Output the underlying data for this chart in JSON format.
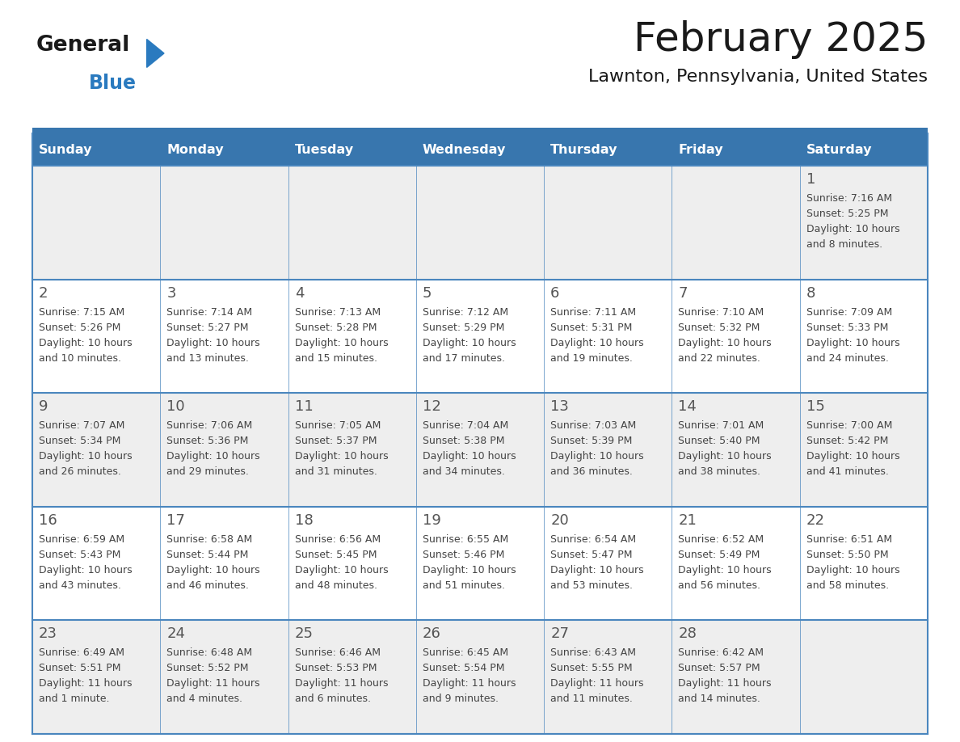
{
  "title": "February 2025",
  "subtitle": "Lawnton, Pennsylvania, United States",
  "header_bg_color": "#3876ae",
  "header_text_color": "#ffffff",
  "day_names": [
    "Sunday",
    "Monday",
    "Tuesday",
    "Wednesday",
    "Thursday",
    "Friday",
    "Saturday"
  ],
  "bg_color": "#ffffff",
  "cell_bg_light": "#eeeeee",
  "cell_bg_white": "#ffffff",
  "grid_color": "#4a86be",
  "day_number_color": "#555555",
  "text_color": "#444444",
  "logo_text1": "General",
  "logo_text2": "Blue",
  "logo_black_color": "#1a1a1a",
  "logo_blue_color": "#2a7abf",
  "calendar_data": [
    [
      null,
      null,
      null,
      null,
      null,
      null,
      {
        "day": 1,
        "sunrise": "7:16 AM",
        "sunset": "5:25 PM",
        "daylight": "10 hours and 8 minutes"
      }
    ],
    [
      {
        "day": 2,
        "sunrise": "7:15 AM",
        "sunset": "5:26 PM",
        "daylight": "10 hours and 10 minutes"
      },
      {
        "day": 3,
        "sunrise": "7:14 AM",
        "sunset": "5:27 PM",
        "daylight": "10 hours and 13 minutes"
      },
      {
        "day": 4,
        "sunrise": "7:13 AM",
        "sunset": "5:28 PM",
        "daylight": "10 hours and 15 minutes"
      },
      {
        "day": 5,
        "sunrise": "7:12 AM",
        "sunset": "5:29 PM",
        "daylight": "10 hours and 17 minutes"
      },
      {
        "day": 6,
        "sunrise": "7:11 AM",
        "sunset": "5:31 PM",
        "daylight": "10 hours and 19 minutes"
      },
      {
        "day": 7,
        "sunrise": "7:10 AM",
        "sunset": "5:32 PM",
        "daylight": "10 hours and 22 minutes"
      },
      {
        "day": 8,
        "sunrise": "7:09 AM",
        "sunset": "5:33 PM",
        "daylight": "10 hours and 24 minutes"
      }
    ],
    [
      {
        "day": 9,
        "sunrise": "7:07 AM",
        "sunset": "5:34 PM",
        "daylight": "10 hours and 26 minutes"
      },
      {
        "day": 10,
        "sunrise": "7:06 AM",
        "sunset": "5:36 PM",
        "daylight": "10 hours and 29 minutes"
      },
      {
        "day": 11,
        "sunrise": "7:05 AM",
        "sunset": "5:37 PM",
        "daylight": "10 hours and 31 minutes"
      },
      {
        "day": 12,
        "sunrise": "7:04 AM",
        "sunset": "5:38 PM",
        "daylight": "10 hours and 34 minutes"
      },
      {
        "day": 13,
        "sunrise": "7:03 AM",
        "sunset": "5:39 PM",
        "daylight": "10 hours and 36 minutes"
      },
      {
        "day": 14,
        "sunrise": "7:01 AM",
        "sunset": "5:40 PM",
        "daylight": "10 hours and 38 minutes"
      },
      {
        "day": 15,
        "sunrise": "7:00 AM",
        "sunset": "5:42 PM",
        "daylight": "10 hours and 41 minutes"
      }
    ],
    [
      {
        "day": 16,
        "sunrise": "6:59 AM",
        "sunset": "5:43 PM",
        "daylight": "10 hours and 43 minutes"
      },
      {
        "day": 17,
        "sunrise": "6:58 AM",
        "sunset": "5:44 PM",
        "daylight": "10 hours and 46 minutes"
      },
      {
        "day": 18,
        "sunrise": "6:56 AM",
        "sunset": "5:45 PM",
        "daylight": "10 hours and 48 minutes"
      },
      {
        "day": 19,
        "sunrise": "6:55 AM",
        "sunset": "5:46 PM",
        "daylight": "10 hours and 51 minutes"
      },
      {
        "day": 20,
        "sunrise": "6:54 AM",
        "sunset": "5:47 PM",
        "daylight": "10 hours and 53 minutes"
      },
      {
        "day": 21,
        "sunrise": "6:52 AM",
        "sunset": "5:49 PM",
        "daylight": "10 hours and 56 minutes"
      },
      {
        "day": 22,
        "sunrise": "6:51 AM",
        "sunset": "5:50 PM",
        "daylight": "10 hours and 58 minutes"
      }
    ],
    [
      {
        "day": 23,
        "sunrise": "6:49 AM",
        "sunset": "5:51 PM",
        "daylight": "11 hours and 1 minute"
      },
      {
        "day": 24,
        "sunrise": "6:48 AM",
        "sunset": "5:52 PM",
        "daylight": "11 hours and 4 minutes"
      },
      {
        "day": 25,
        "sunrise": "6:46 AM",
        "sunset": "5:53 PM",
        "daylight": "11 hours and 6 minutes"
      },
      {
        "day": 26,
        "sunrise": "6:45 AM",
        "sunset": "5:54 PM",
        "daylight": "11 hours and 9 minutes"
      },
      {
        "day": 27,
        "sunrise": "6:43 AM",
        "sunset": "5:55 PM",
        "daylight": "11 hours and 11 minutes"
      },
      {
        "day": 28,
        "sunrise": "6:42 AM",
        "sunset": "5:57 PM",
        "daylight": "11 hours and 14 minutes"
      },
      null
    ]
  ],
  "fig_width": 11.88,
  "fig_height": 9.18,
  "dpi": 100
}
